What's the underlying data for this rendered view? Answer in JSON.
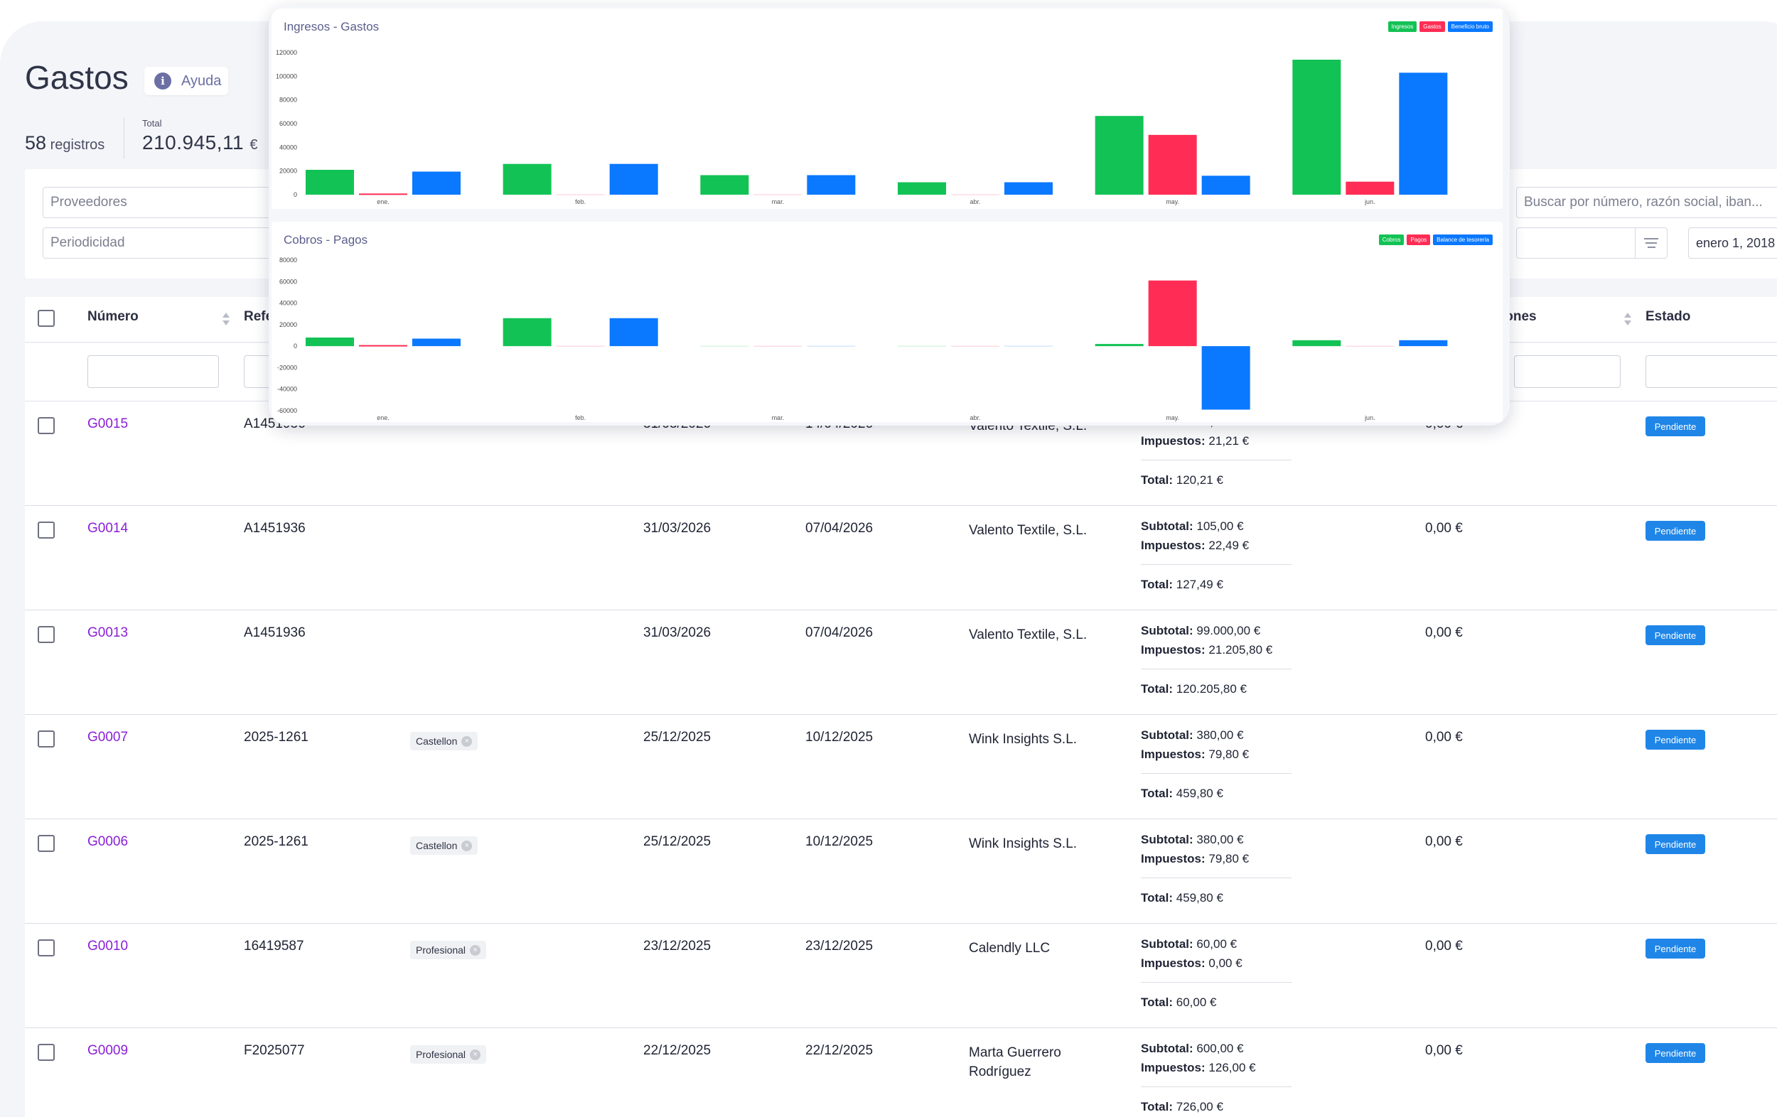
{
  "header": {
    "title": "Gastos",
    "help_label": "Ayuda",
    "records_count": "58",
    "records_label": "registros",
    "total_label": "Total",
    "total_value": "210.945,11",
    "total_currency": "€"
  },
  "filters": {
    "proveedores": "Proveedores",
    "periodicidad": "Periodicidad",
    "search_placeholder": "Buscar por número, razón social, iban...",
    "date_value": "enero 1, 2018"
  },
  "table": {
    "columns": {
      "numero": "Número",
      "referencia": "Refe",
      "retenciones": "iones",
      "estado": "Estado"
    },
    "labels": {
      "subtotal": "Subtotal:",
      "impuestos": "Impuestos:",
      "total": "Total:"
    },
    "rows": [
      {
        "numero": "G0015",
        "referencia": "A1451936",
        "tag": "",
        "fecha": "31/03/2026",
        "vencimiento": "14/04/2026",
        "proveedor": "Valento Textile, S.L.",
        "proveedor2": "",
        "subtotal": "99,00 €",
        "impuestos": "21,21 €",
        "total": "120,21 €",
        "pagado": "0,00 €",
        "estado": "Pendiente"
      },
      {
        "numero": "G0014",
        "referencia": "A1451936",
        "tag": "",
        "fecha": "31/03/2026",
        "vencimiento": "07/04/2026",
        "proveedor": "Valento Textile, S.L.",
        "proveedor2": "",
        "subtotal": "105,00 €",
        "impuestos": "22,49 €",
        "total": "127,49 €",
        "pagado": "0,00 €",
        "estado": "Pendiente"
      },
      {
        "numero": "G0013",
        "referencia": "A1451936",
        "tag": "",
        "fecha": "31/03/2026",
        "vencimiento": "07/04/2026",
        "proveedor": "Valento Textile, S.L.",
        "proveedor2": "",
        "subtotal": "99.000,00 €",
        "impuestos": "21.205,80 €",
        "total": "120.205,80 €",
        "pagado": "0,00 €",
        "estado": "Pendiente"
      },
      {
        "numero": "G0007",
        "referencia": "2025-1261",
        "tag": "Castellon",
        "fecha": "25/12/2025",
        "vencimiento": "10/12/2025",
        "proveedor": "Wink Insights S.L.",
        "proveedor2": "",
        "subtotal": "380,00 €",
        "impuestos": "79,80 €",
        "total": "459,80 €",
        "pagado": "0,00 €",
        "estado": "Pendiente"
      },
      {
        "numero": "G0006",
        "referencia": "2025-1261",
        "tag": "Castellon",
        "fecha": "25/12/2025",
        "vencimiento": "10/12/2025",
        "proveedor": "Wink Insights S.L.",
        "proveedor2": "",
        "subtotal": "380,00 €",
        "impuestos": "79,80 €",
        "total": "459,80 €",
        "pagado": "0,00 €",
        "estado": "Pendiente"
      },
      {
        "numero": "G0010",
        "referencia": "16419587",
        "tag": "Profesional",
        "fecha": "23/12/2025",
        "vencimiento": "23/12/2025",
        "proveedor": "Calendly LLC",
        "proveedor2": "",
        "subtotal": "60,00 €",
        "impuestos": "0,00 €",
        "total": "60,00 €",
        "pagado": "0,00 €",
        "estado": "Pendiente"
      },
      {
        "numero": "G0009",
        "referencia": "F2025077",
        "tag": "Profesional",
        "fecha": "22/12/2025",
        "vencimiento": "22/12/2025",
        "proveedor": "Marta Guerrero",
        "proveedor2": "Rodríguez",
        "subtotal": "600,00 €",
        "impuestos": "126,00 €",
        "total": "726,00 €",
        "pagado": "0,00 €",
        "estado": "Pendiente"
      }
    ]
  },
  "chart_data": [
    {
      "type": "bar",
      "title": "Ingresos - Gastos",
      "categories": [
        "ene.",
        "feb.",
        "mar.",
        "abr.",
        "may.",
        "jun."
      ],
      "ylim": [
        0,
        120000
      ],
      "yticks": [
        "120000",
        "100000",
        "80000",
        "60000",
        "40000",
        "20000",
        "0"
      ],
      "legend": "top-right",
      "series": [
        {
          "name": "Ingresos",
          "color": "#13c255",
          "values": [
            21000,
            26000,
            16500,
            10500,
            66500,
            114000
          ]
        },
        {
          "name": "Gastos",
          "color": "#ff2d55",
          "values": [
            1000,
            0,
            0,
            0,
            50500,
            11000
          ]
        },
        {
          "name": "Beneficio bruto",
          "color": "#0a78ff",
          "values": [
            19500,
            26000,
            16500,
            10500,
            16000,
            103000
          ]
        }
      ]
    },
    {
      "type": "bar",
      "title": "Cobros - Pagos",
      "categories": [
        "ene.",
        "feb.",
        "mar.",
        "abr.",
        "may.",
        "jun."
      ],
      "ylim": [
        -60000,
        80000
      ],
      "yticks": [
        "80000",
        "60000",
        "40000",
        "20000",
        "0",
        "-20000",
        "-40000",
        "-60000"
      ],
      "legend": "top-right",
      "series": [
        {
          "name": "Cobros",
          "color": "#13c255",
          "values": [
            8000,
            26000,
            0,
            0,
            2000,
            5500
          ]
        },
        {
          "name": "Pagos",
          "color": "#ff2d55",
          "values": [
            1000,
            0,
            0,
            0,
            61000,
            0
          ]
        },
        {
          "name": "Balance de tesorería",
          "color": "#0a78ff",
          "values": [
            7000,
            26000,
            0,
            0,
            -59000,
            5500
          ]
        }
      ]
    }
  ]
}
